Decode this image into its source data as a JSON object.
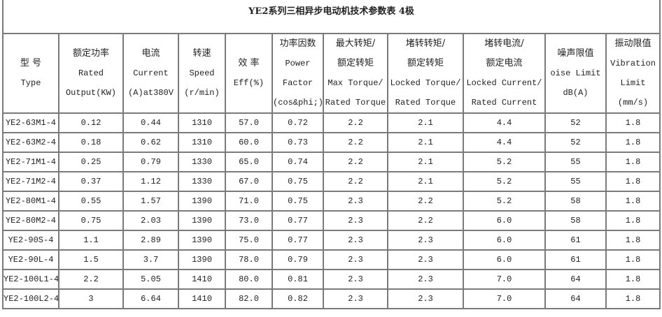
{
  "title": "YE2系列三相异步电动机技术参数表 4极",
  "headers": [
    {
      "lines": [
        "型 号",
        "Type"
      ]
    },
    {
      "lines": [
        "额定功率",
        "Rated",
        "Output(KW)"
      ]
    },
    {
      "lines": [
        "电流",
        "Current",
        "(A)at380V"
      ]
    },
    {
      "lines": [
        "转速",
        "Speed",
        "(r/min)"
      ]
    },
    {
      "lines": [
        "效 率",
        "Eff(%)"
      ]
    },
    {
      "lines": [
        "功率因数",
        "Power",
        "Factor",
        "(cos&phi;)"
      ]
    },
    {
      "lines": [
        "最大转矩/",
        "额定转矩",
        "Max Torque/",
        "Rated Torque"
      ]
    },
    {
      "lines": [
        "堵转转矩/",
        "额定转矩",
        "Locked Torque/",
        "Rated Torque"
      ]
    },
    {
      "lines": [
        "堵转电流/",
        "额定电流",
        "Locked Current/",
        "Rated Current"
      ]
    },
    {
      "lines": [
        "噪声限值",
        "oise Limit",
        "dB(A)"
      ]
    },
    {
      "lines": [
        "振动限值",
        "Vibration",
        "Limit",
        "(mm/s)"
      ]
    }
  ],
  "rows": [
    [
      "YE2-63M1-4",
      "0.12",
      "0.44",
      "1310",
      "57.0",
      "0.72",
      "2.2",
      "2.1",
      "4.4",
      "52",
      "1.8"
    ],
    [
      "YE2-63M2-4",
      "0.18",
      "0.62",
      "1310",
      "60.0",
      "0.73",
      "2.2",
      "2.1",
      "4.4",
      "52",
      "1.8"
    ],
    [
      "YE2-71M1-4",
      "0.25",
      "0.79",
      "1330",
      "65.0",
      "0.74",
      "2.2",
      "2.1",
      "5.2",
      "55",
      "1.8"
    ],
    [
      "YE2-71M2-4",
      "0.37",
      "1.12",
      "1330",
      "67.0",
      "0.75",
      "2.2",
      "2.1",
      "5.2",
      "55",
      "1.8"
    ],
    [
      "YE2-80M1-4",
      "0.55",
      "1.57",
      "1390",
      "71.0",
      "0.75",
      "2.3",
      "2.2",
      "5.2",
      "58",
      "1.8"
    ],
    [
      "YE2-80M2-4",
      "0.75",
      "2.03",
      "1390",
      "73.0",
      "0.77",
      "2.3",
      "2.2",
      "6.0",
      "58",
      "1.8"
    ],
    [
      "YE2-90S-4",
      "1.1",
      "2.89",
      "1390",
      "75.0",
      "0.77",
      "2.3",
      "2.3",
      "6.0",
      "61",
      "1.8"
    ],
    [
      "YE2-90L-4",
      "1.5",
      "3.7",
      "1390",
      "78.0",
      "0.79",
      "2.3",
      "2.3",
      "6.0",
      "61",
      "1.8"
    ],
    [
      "YE2-100L1-4",
      "2.2",
      "5.05",
      "1410",
      "80.0",
      "0.81",
      "2.3",
      "2.3",
      "7.0",
      "64",
      "1.8"
    ],
    [
      "YE2-100L2-4",
      "3",
      "6.64",
      "1410",
      "82.0",
      "0.82",
      "2.3",
      "2.3",
      "7.0",
      "64",
      "1.8"
    ]
  ]
}
